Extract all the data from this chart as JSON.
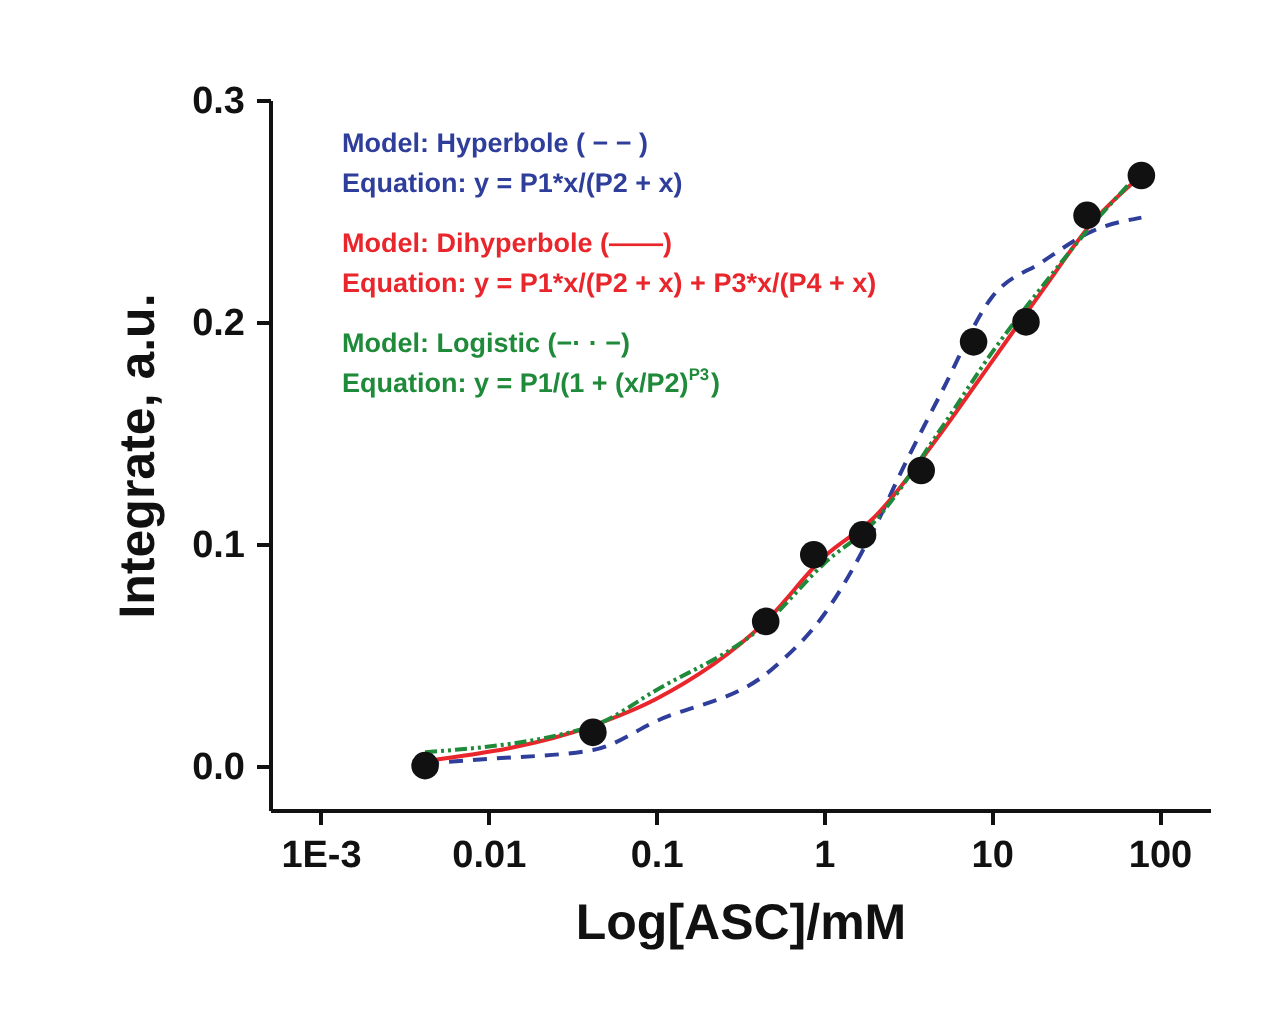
{
  "chart_data": {
    "type": "scatter",
    "xlabel": "Log[ASC]/mM",
    "ylabel": "Integrate, a.u.",
    "log": "x",
    "grid": false,
    "xlim": [
      0.0005,
      200
    ],
    "ylim": [
      -0.02,
      0.3
    ],
    "xticks": [
      {
        "value": 0.001,
        "label": "1E-3"
      },
      0.01,
      0.1,
      1,
      10,
      100
    ],
    "yticks": [
      {
        "value": 0,
        "label": "0.0"
      },
      0.1,
      0.2,
      0.3
    ],
    "series": [
      {
        "type": "line",
        "color": "#2e3e9a",
        "line_style": "dashed",
        "marker": "none",
        "x": [
          0.0042,
          0.01,
          0.042,
          0.1,
          0.5,
          1,
          2,
          3,
          5,
          10,
          20,
          40,
          78
        ],
        "values": [
          0.001,
          0.003,
          0.007,
          0.02,
          0.044,
          0.068,
          0.107,
          0.135,
          0.168,
          0.211,
          0.227,
          0.241,
          0.247
        ]
      },
      {
        "type": "line",
        "color": "#e8262c",
        "line_style": "solid",
        "marker": "none",
        "x": [
          0.0042,
          0.042,
          0.1,
          0.45,
          1,
          2,
          5,
          10,
          20,
          40,
          78
        ],
        "values": [
          0.002,
          0.018,
          0.03,
          0.065,
          0.094,
          0.112,
          0.15,
          0.182,
          0.214,
          0.245,
          0.266
        ]
      },
      {
        "type": "line",
        "color": "#1f8a3a",
        "line_style": "dotted",
        "marker": "none",
        "x": [
          0.0042,
          0.042,
          0.1,
          0.45,
          1,
          2,
          5,
          10,
          20,
          40,
          78
        ],
        "values": [
          0.006,
          0.018,
          0.034,
          0.064,
          0.091,
          0.11,
          0.152,
          0.186,
          0.216,
          0.244,
          0.268
        ]
      },
      {
        "color": "#111111",
        "marker": "circle",
        "x": [
          0.0042,
          0.042,
          0.45,
          0.87,
          1.7,
          3.8,
          7.8,
          16,
          37,
          78
        ],
        "values": [
          0.0,
          0.015,
          0.065,
          0.095,
          0.104,
          0.133,
          0.191,
          0.2,
          0.248,
          0.266
        ]
      }
    ],
    "annotations": [
      "Model: Hyperbole ( − − )",
      "Equation: y = P1*x/(P2 + x)",
      "Model: Dihyperbole (——)",
      "Equation: y = P1*x/(P2 + x) + P3*x/(P4 + x)",
      "Model: Logistic (−· · −)",
      "Equation: y = P1/(1 + (x/P2)$^{P3}$)"
    ]
  }
}
